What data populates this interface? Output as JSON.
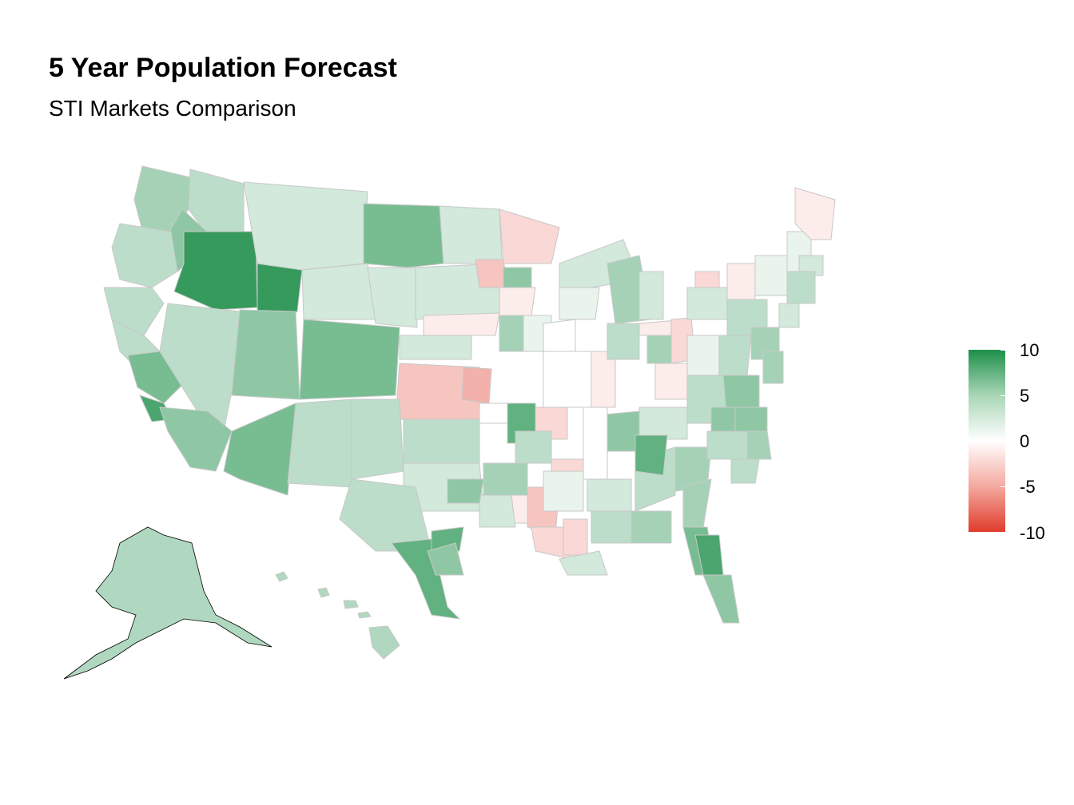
{
  "title": "5 Year Population Forecast",
  "subtitle": "STI Markets Comparison",
  "legend": {
    "labels": [
      "10",
      "5",
      "0",
      "-5",
      "-10"
    ],
    "values": [
      10,
      5,
      0,
      -5,
      -10
    ],
    "colors": {
      "high": "#1e8f4a",
      "mid": "#ffffff",
      "low": "#e03c2c"
    }
  },
  "chart_data": {
    "type": "choropleth",
    "scale": {
      "min": -10,
      "max": 10,
      "midpoint": 0
    },
    "border_color": "#c0c0c0"
  }
}
